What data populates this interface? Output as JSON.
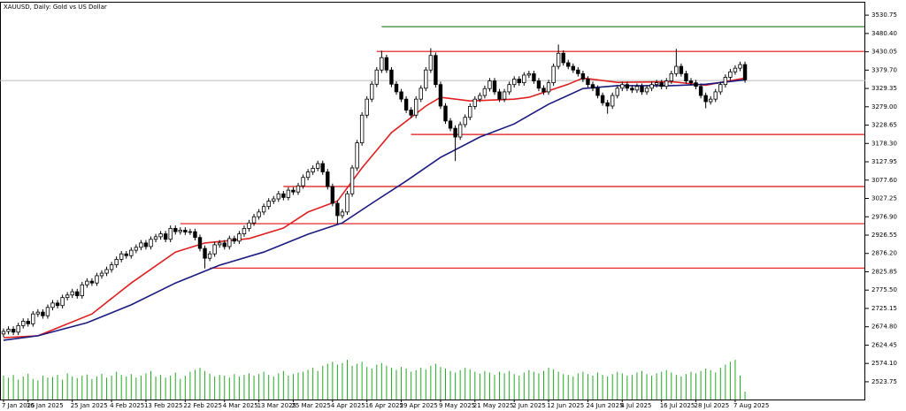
{
  "chart_data": {
    "type": "candlestick",
    "title": "XAUUSD, Daily: Gold vs US Dollar",
    "categories": [
      "7 Jan 2025",
      null,
      null,
      null,
      null,
      "16 Jan 2025",
      null,
      null,
      null,
      null,
      null,
      null,
      null,
      null,
      "25 Jan 2025",
      null,
      null,
      null,
      null,
      null,
      null,
      null,
      "4 Feb 2025",
      null,
      null,
      null,
      null,
      null,
      null,
      "13 Feb 2025",
      null,
      null,
      null,
      null,
      null,
      null,
      null,
      "22 Feb 2025",
      null,
      null,
      null,
      null,
      null,
      null,
      null,
      "4 Mar 2025",
      null,
      null,
      null,
      null,
      null,
      null,
      "13 Mar 2025",
      null,
      null,
      null,
      null,
      null,
      null,
      "25 Mar 2025",
      null,
      null,
      null,
      null,
      null,
      null,
      null,
      "4 Apr 2025",
      null,
      null,
      null,
      null,
      null,
      null,
      "16 Apr 2025",
      null,
      null,
      null,
      null,
      null,
      null,
      "29 Apr 2025",
      null,
      null,
      null,
      null,
      null,
      null,
      null,
      "9 May 2025",
      null,
      null,
      null,
      null,
      null,
      null,
      "21 May 2025",
      null,
      null,
      null,
      null,
      null,
      null,
      null,
      "2 Jun 2025",
      null,
      null,
      null,
      null,
      null,
      null,
      "12 Jun 2025",
      null,
      null,
      null,
      null,
      null,
      null,
      null,
      "24 Jun 2025",
      null,
      null,
      null,
      null,
      null,
      null,
      "4 Jul 2025",
      null,
      null,
      null,
      null,
      null,
      null,
      null,
      "16 Jul 2025",
      null,
      null,
      null,
      null,
      null,
      null,
      "28 Jul 2025",
      null,
      null,
      null,
      null,
      null,
      null,
      null,
      "7 Aug 2025",
      null,
      null
    ],
    "open": [
      2655,
      2662,
      2668,
      2660,
      2678,
      2690,
      2683,
      2710,
      2715,
      2705,
      2728,
      2740,
      2733,
      2755,
      2762,
      2771,
      2760,
      2790,
      2800,
      2795,
      2815,
      2822,
      2832,
      2845,
      2860,
      2875,
      2870,
      2885,
      2893,
      2905,
      2895,
      2915,
      2922,
      2930,
      2915,
      2945,
      2936,
      2940,
      2935,
      2936,
      2920,
      2890,
      2863,
      2875,
      2900,
      2905,
      2895,
      2917,
      2910,
      2930,
      2945,
      2960,
      2977,
      2990,
      3005,
      3020,
      3026,
      3040,
      3030,
      3050,
      3045,
      3062,
      3085,
      3100,
      3110,
      3123,
      3100,
      3060,
      3014,
      2980,
      2990,
      3040,
      3111,
      3180,
      3256,
      3300,
      3341,
      3380,
      3414,
      3380,
      3341,
      3320,
      3300,
      3270,
      3256,
      3300,
      3330,
      3380,
      3420,
      3340,
      3281,
      3240,
      3220,
      3196,
      3230,
      3250,
      3280,
      3300,
      3310,
      3329,
      3350,
      3320,
      3300,
      3320,
      3340,
      3355,
      3345,
      3366,
      3370,
      3350,
      3330,
      3320,
      3345,
      3390,
      3426,
      3400,
      3390,
      3380,
      3370,
      3355,
      3340,
      3330,
      3310,
      3290,
      3281,
      3310,
      3330,
      3340,
      3330,
      3325,
      3335,
      3320,
      3330,
      3340,
      3345,
      3335,
      3350,
      3370,
      3390,
      3370,
      3350,
      3345,
      3335,
      3310,
      3293,
      3300,
      3320,
      3340,
      3360,
      3375,
      3385,
      3395
    ],
    "high": [
      2670,
      2676,
      2676,
      2686,
      2698,
      2698,
      2718,
      2723,
      2723,
      2736,
      2748,
      2748,
      2763,
      2770,
      2779,
      2779,
      2798,
      2808,
      2808,
      2823,
      2830,
      2840,
      2853,
      2868,
      2883,
      2883,
      2893,
      2901,
      2913,
      2913,
      2923,
      2930,
      2938,
      2938,
      2953,
      2953,
      2948,
      2948,
      2944,
      2944,
      2928,
      2898,
      2883,
      2908,
      2913,
      2913,
      2925,
      2925,
      2938,
      2953,
      2968,
      2985,
      2998,
      3013,
      3028,
      3034,
      3048,
      3048,
      3058,
      3058,
      3070,
      3093,
      3108,
      3118,
      3131,
      3131,
      3108,
      3068,
      3022,
      2998,
      3048,
      3119,
      3188,
      3264,
      3308,
      3349,
      3388,
      3433,
      3422,
      3388,
      3349,
      3328,
      3308,
      3278,
      3308,
      3338,
      3388,
      3440,
      3428,
      3348,
      3289,
      3248,
      3228,
      3238,
      3258,
      3288,
      3308,
      3318,
      3337,
      3358,
      3358,
      3328,
      3328,
      3348,
      3363,
      3363,
      3374,
      3378,
      3378,
      3358,
      3338,
      3353,
      3398,
      3450,
      3434,
      3408,
      3398,
      3388,
      3378,
      3363,
      3348,
      3338,
      3318,
      3298,
      3318,
      3338,
      3348,
      3348,
      3338,
      3343,
      3343,
      3338,
      3348,
      3353,
      3353,
      3358,
      3378,
      3438,
      3398,
      3378,
      3358,
      3353,
      3343,
      3318,
      3308,
      3328,
      3348,
      3368,
      3383,
      3393,
      3403,
      3403
    ],
    "low": [
      2647,
      2654,
      2652,
      2652,
      2670,
      2675,
      2675,
      2702,
      2697,
      2697,
      2720,
      2725,
      2725,
      2747,
      2754,
      2752,
      2752,
      2782,
      2787,
      2787,
      2807,
      2814,
      2824,
      2837,
      2852,
      2862,
      2862,
      2877,
      2885,
      2887,
      2887,
      2907,
      2914,
      2907,
      2907,
      2928,
      2928,
      2927,
      2927,
      2912,
      2882,
      2835,
      2855,
      2867,
      2892,
      2887,
      2887,
      2902,
      2902,
      2922,
      2937,
      2952,
      2969,
      2982,
      2997,
      3012,
      3018,
      3022,
      3022,
      3037,
      3037,
      3054,
      3077,
      3092,
      3102,
      3092,
      3052,
      3006,
      2958,
      2972,
      2982,
      3032,
      3103,
      3172,
      3248,
      3292,
      3333,
      3372,
      3372,
      3333,
      3312,
      3292,
      3262,
      3248,
      3248,
      3292,
      3322,
      3372,
      3332,
      3273,
      3232,
      3212,
      3130,
      3188,
      3222,
      3242,
      3272,
      3292,
      3302,
      3321,
      3312,
      3292,
      3292,
      3312,
      3332,
      3337,
      3337,
      3358,
      3342,
      3322,
      3312,
      3312,
      3337,
      3382,
      3392,
      3382,
      3372,
      3362,
      3347,
      3332,
      3322,
      3302,
      3282,
      3260,
      3273,
      3302,
      3322,
      3322,
      3317,
      3317,
      3312,
      3312,
      3322,
      3332,
      3327,
      3327,
      3342,
      3362,
      3362,
      3342,
      3337,
      3327,
      3302,
      3275,
      3285,
      3292,
      3312,
      3332,
      3352,
      3367,
      3377,
      3345
    ],
    "close": [
      2662,
      2668,
      2660,
      2678,
      2690,
      2683,
      2710,
      2715,
      2705,
      2728,
      2740,
      2733,
      2755,
      2762,
      2771,
      2760,
      2790,
      2800,
      2795,
      2815,
      2822,
      2832,
      2845,
      2860,
      2875,
      2870,
      2885,
      2893,
      2905,
      2895,
      2915,
      2922,
      2930,
      2915,
      2945,
      2936,
      2940,
      2935,
      2936,
      2920,
      2890,
      2863,
      2875,
      2900,
      2905,
      2895,
      2917,
      2910,
      2930,
      2945,
      2960,
      2977,
      2990,
      3005,
      3020,
      3026,
      3040,
      3030,
      3050,
      3045,
      3062,
      3085,
      3100,
      3110,
      3123,
      3100,
      3060,
      3014,
      2980,
      2990,
      3040,
      3111,
      3180,
      3256,
      3300,
      3341,
      3380,
      3414,
      3380,
      3341,
      3320,
      3300,
      3270,
      3256,
      3300,
      3330,
      3380,
      3420,
      3340,
      3281,
      3240,
      3220,
      3196,
      3230,
      3250,
      3280,
      3300,
      3310,
      3329,
      3350,
      3320,
      3300,
      3320,
      3340,
      3355,
      3345,
      3366,
      3370,
      3350,
      3330,
      3320,
      3345,
      3390,
      3426,
      3400,
      3390,
      3380,
      3370,
      3355,
      3340,
      3330,
      3310,
      3290,
      3281,
      3310,
      3330,
      3340,
      3330,
      3325,
      3335,
      3320,
      3330,
      3340,
      3345,
      3335,
      3350,
      3370,
      3390,
      3370,
      3350,
      3345,
      3335,
      3310,
      3293,
      3300,
      3320,
      3340,
      3360,
      3375,
      3385,
      3395,
      3353
    ],
    "volume": [
      60,
      55,
      62,
      50,
      58,
      65,
      52,
      48,
      60,
      55,
      57,
      62,
      50,
      66,
      58,
      54,
      60,
      63,
      52,
      58,
      65,
      55,
      60,
      70,
      62,
      58,
      64,
      55,
      60,
      66,
      72,
      58,
      62,
      55,
      60,
      68,
      52,
      60,
      70,
      75,
      80,
      72,
      65,
      58,
      62,
      60,
      55,
      64,
      58,
      62,
      66,
      60,
      64,
      70,
      62,
      58,
      66,
      72,
      60,
      64,
      68,
      70,
      75,
      80,
      72,
      85,
      90,
      95,
      88,
      92,
      100,
      85,
      90,
      95,
      82,
      78,
      88,
      92,
      85,
      80,
      75,
      82,
      78,
      70,
      74,
      80,
      76,
      85,
      90,
      82,
      78,
      72,
      68,
      74,
      80,
      76,
      70,
      65,
      72,
      68,
      62,
      70,
      66,
      72,
      64,
      60,
      68,
      74,
      70,
      66,
      72,
      80,
      76,
      70,
      64,
      62,
      58,
      66,
      70,
      64,
      60,
      68,
      62,
      58,
      64,
      70,
      66,
      60,
      62,
      68,
      72,
      64,
      60,
      66,
      70,
      74,
      68,
      62,
      58,
      64,
      70,
      66,
      72,
      78,
      74,
      68,
      80,
      88,
      95,
      100,
      60,
      20
    ],
    "volume_lim": [
      0,
      1000
    ],
    "volume_color": "#22aa22",
    "up_color": "#ffffff",
    "down_color": "#000000",
    "lines": [
      {
        "color": "#e02020",
        "x": [
          0,
          7,
          18,
          26,
          35,
          41,
          50,
          57,
          62,
          68,
          73,
          79,
          86,
          89,
          95,
          104,
          107,
          115,
          118,
          125,
          136,
          143,
          151
        ],
        "values": [
          2645,
          2650,
          2710,
          2795,
          2880,
          2905,
          2917,
          2946,
          2990,
          3020,
          3111,
          3208,
          3281,
          3305,
          3295,
          3300,
          3305,
          3341,
          3358,
          3346,
          3348,
          3338,
          3358
        ]
      },
      {
        "color": "#1a1a80",
        "x": [
          0,
          7,
          17,
          26,
          35,
          44,
          53,
          62,
          69,
          75,
          82,
          89,
          97,
          104,
          111,
          118,
          125,
          136,
          143,
          151
        ],
        "values": [
          2638,
          2650,
          2686,
          2735,
          2795,
          2844,
          2880,
          2929,
          2960,
          3014,
          3075,
          3140,
          3196,
          3232,
          3286,
          3329,
          3337,
          3337,
          3341,
          3353
        ]
      }
    ],
    "levels": [
      {
        "value": 3499,
        "color": "#1f7a1f",
        "start": 77
      },
      {
        "value": 3431,
        "color": "#e01010",
        "start": 76
      },
      {
        "value": 3203,
        "color": "#e01010",
        "start": 83
      },
      {
        "value": 3060,
        "color": "#e01010",
        "start": 57
      },
      {
        "value": 2958,
        "color": "#e01010",
        "start": 36
      },
      {
        "value": 2836,
        "color": "#e01010",
        "start": 42
      }
    ],
    "bid": 3351,
    "ylim": [
      2475,
      3565
    ],
    "yticks": [
      {
        "value": 3530.75,
        "label": "3530.75"
      },
      {
        "value": 3480.4,
        "label": "3480.40"
      },
      {
        "value": 3430.05,
        "label": "3430.05"
      },
      {
        "value": 3379.7,
        "label": "3379.70"
      },
      {
        "value": 3329.35,
        "label": "3329.35"
      },
      {
        "value": 3279,
        "label": "3279.00"
      },
      {
        "value": 3228.65,
        "label": "3228.65"
      },
      {
        "value": 3178.3,
        "label": "3178.30"
      },
      {
        "value": 3127.95,
        "label": "3127.95"
      },
      {
        "value": 3077.6,
        "label": "3077.60"
      },
      {
        "value": 3027.25,
        "label": "3027.25"
      },
      {
        "value": 2976.9,
        "label": "2976.90"
      },
      {
        "value": 2926.55,
        "label": "2926.55"
      },
      {
        "value": 2876.2,
        "label": "2876.20"
      },
      {
        "value": 2825.85,
        "label": "2825.85"
      },
      {
        "value": 2775.5,
        "label": "2775.50"
      },
      {
        "value": 2725.15,
        "label": "2725.15"
      },
      {
        "value": 2674.8,
        "label": "2674.80"
      },
      {
        "value": 2624.45,
        "label": "2624.45"
      },
      {
        "value": 2574.1,
        "label": "2574.10"
      },
      {
        "value": 2523.75,
        "label": "2523.75"
      }
    ]
  }
}
